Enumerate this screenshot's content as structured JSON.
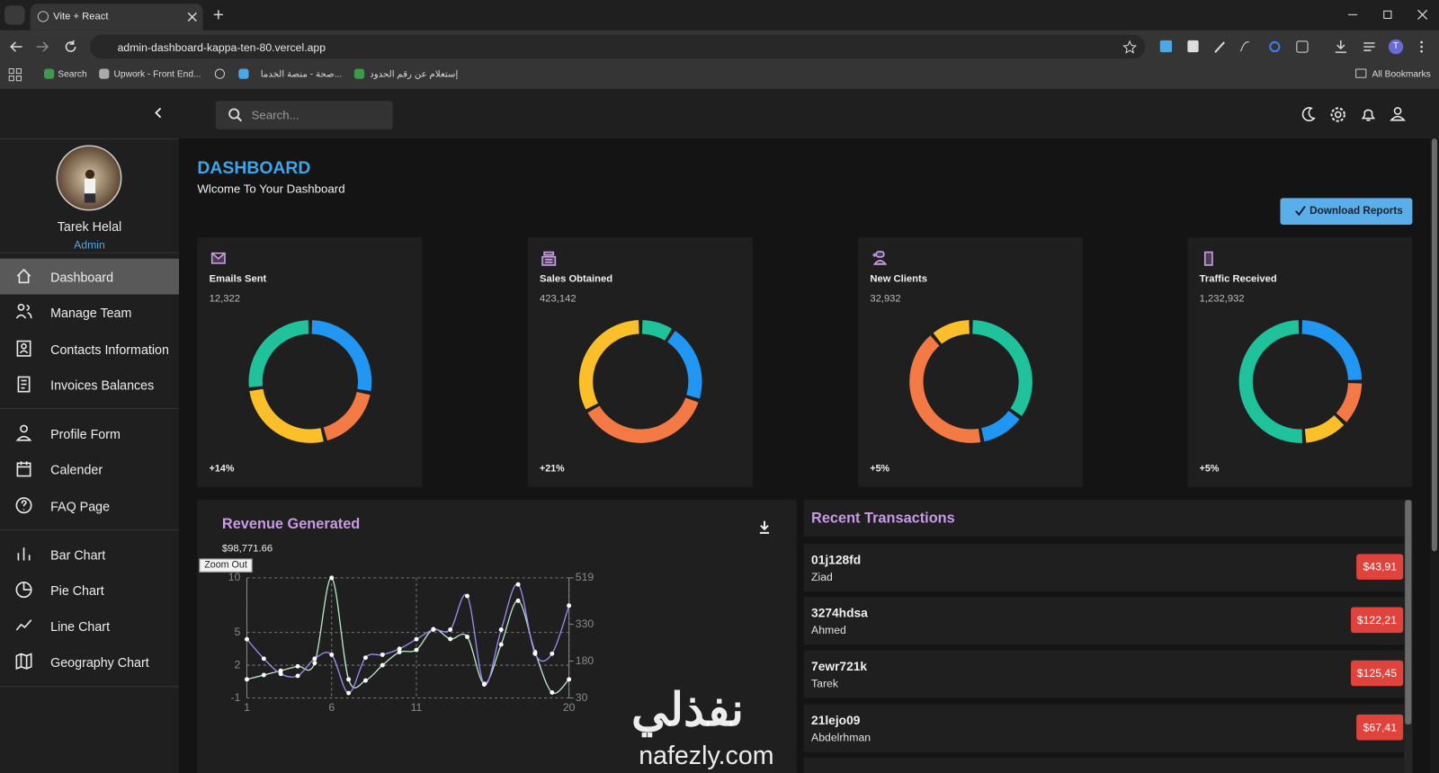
{
  "browser": {
    "tab_title": "Vite + React",
    "url": "admin-dashboard-kappa-ten-80.vercel.app",
    "bookmarks": [
      "Search",
      "Upwork - Front End...",
      "صحة - منصة الخدما...",
      "إستعلام عن رقم الحدود"
    ],
    "all_bookmarks": "All Bookmarks",
    "profile_initial": "T"
  },
  "topbar": {
    "search_placeholder": "Search..."
  },
  "sidebar": {
    "user_name": "Tarek Helal",
    "user_role": "Admin",
    "nav_groups": [
      [
        {
          "label": "Dashboard",
          "selected": true
        },
        {
          "label": "Manage Team",
          "selected": false
        },
        {
          "label": "Contacts Information",
          "selected": false
        },
        {
          "label": "Invoices Balances",
          "selected": false
        }
      ],
      [
        {
          "label": "Profile Form",
          "selected": false
        },
        {
          "label": "Calender",
          "selected": false
        },
        {
          "label": "FAQ Page",
          "selected": false
        }
      ],
      [
        {
          "label": "Bar Chart",
          "selected": false
        },
        {
          "label": "Pie Chart",
          "selected": false
        },
        {
          "label": "Line Chart",
          "selected": false
        },
        {
          "label": "Geography Chart",
          "selected": false
        }
      ]
    ]
  },
  "header": {
    "title": "DASHBOARD",
    "subtitle": "Wlcome To Your Dashboard",
    "button": "Download Reports"
  },
  "stat_cards": [
    {
      "title": "Emails Sent",
      "value": "12,322",
      "change": "+14%",
      "donut": [
        {
          "color": "#2196f3",
          "value": 28
        },
        {
          "color": "#f47a45",
          "value": 18
        },
        {
          "color": "#fbbf2a",
          "value": 27
        },
        {
          "color": "#1fc29a",
          "value": 27
        }
      ]
    },
    {
      "title": "Sales Obtained",
      "value": "423,142",
      "change": "+21%",
      "donut": [
        {
          "color": "#1fc29a",
          "value": 9
        },
        {
          "color": "#2196f3",
          "value": 21
        },
        {
          "color": "#f47a45",
          "value": 37
        },
        {
          "color": "#fbbf2a",
          "value": 33
        }
      ]
    },
    {
      "title": "New Clients",
      "value": "32,932",
      "change": "+5%",
      "donut": [
        {
          "color": "#1fc29a",
          "value": 35
        },
        {
          "color": "#2196f3",
          "value": 12
        },
        {
          "color": "#f47a45",
          "value": 42
        },
        {
          "color": "#fbbf2a",
          "value": 11
        }
      ]
    },
    {
      "title": "Traffic Received",
      "value": "1,232,932",
      "change": "+5%",
      "donut": [
        {
          "color": "#2196f3",
          "value": 25
        },
        {
          "color": "#f47a45",
          "value": 12
        },
        {
          "color": "#fbbf2a",
          "value": 12
        },
        {
          "color": "#1fc29a",
          "value": 51
        }
      ]
    }
  ],
  "revenue": {
    "title": "Revenue Generated",
    "amount": "$98,771.66",
    "zoom_button": "Zoom Out",
    "chart_data": {
      "type": "line",
      "x": [
        1,
        2,
        3,
        4,
        5,
        6,
        7,
        8,
        9,
        10,
        11,
        12,
        13,
        14,
        15,
        16,
        17,
        18,
        19,
        20
      ],
      "xlim": [
        1,
        20
      ],
      "xticks": [
        1,
        6,
        11,
        20
      ],
      "ylim": [
        -1,
        10
      ],
      "yticks": [
        -1,
        2,
        5,
        10
      ],
      "y2lim": [
        30,
        519
      ],
      "y2ticks": [
        30,
        180,
        330,
        519
      ],
      "grid": true,
      "series": [
        {
          "color": "#b5e8c8",
          "values": [
            0.7,
            1.1,
            1.5,
            1.9,
            2.2,
            10,
            0.7,
            0.6,
            2,
            3.2,
            3.4,
            5.3,
            4.4,
            4.6,
            0.3,
            3.9,
            7.9,
            3.2,
            -0.5,
            0.7
          ]
        },
        {
          "color": "#9d8cf0",
          "axis": "y2",
          "values": [
            269,
            190,
            128,
            120,
            190,
            206,
            50,
            194,
            206,
            230,
            269,
            308,
            308,
            445,
            85,
            308,
            492,
            210,
            210,
            406
          ]
        }
      ]
    }
  },
  "transactions": {
    "title": "Recent Transactions",
    "items": [
      {
        "tx_id": "01j128fd",
        "user": "Ziad",
        "cost": "$43,91"
      },
      {
        "tx_id": "3274hdsa",
        "user": "Ahmed",
        "cost": "$122,21"
      },
      {
        "tx_id": "7ewr721k",
        "user": "Tarek",
        "cost": "$125,45"
      },
      {
        "tx_id": "21lejo09",
        "user": "Abdelrhman",
        "cost": "$67,41"
      }
    ]
  },
  "watermark": {
    "arabic": "نفذلي",
    "latin": "nafezly.com"
  }
}
